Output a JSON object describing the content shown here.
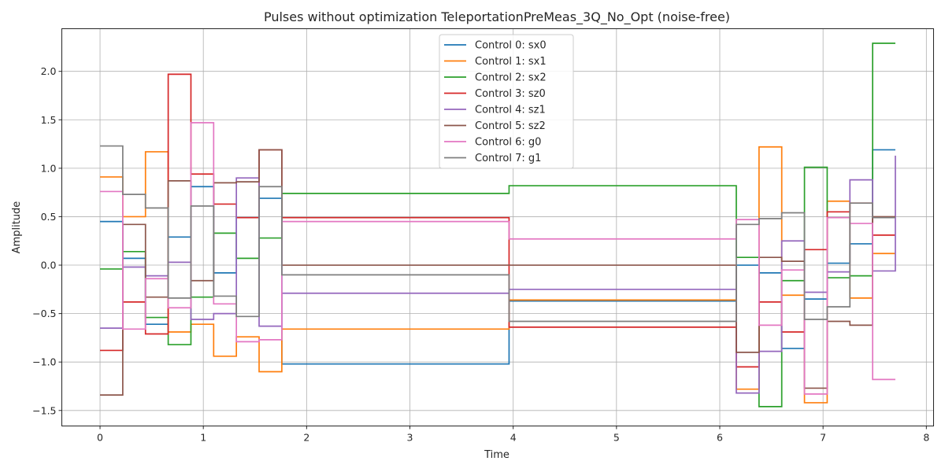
{
  "chart_data": {
    "type": "line",
    "step": "post",
    "title": "Pulses without optimization TeleportationPreMeas_3Q_No_Opt (noise-free)",
    "xlabel": "Time",
    "ylabel": "Amplitude",
    "xlim": [
      -0.37,
      8.07
    ],
    "ylim": [
      -1.66,
      2.44
    ],
    "xticks": [
      0,
      1,
      2,
      3,
      4,
      5,
      6,
      7,
      8
    ],
    "yticks": [
      -1.5,
      -1.0,
      -0.5,
      0.0,
      0.5,
      1.0,
      1.5,
      2.0
    ],
    "ytick_labels": [
      "−1.5",
      "−1.0",
      "−0.5",
      "0.0",
      "0.5",
      "1.0",
      "1.5",
      "2.0"
    ],
    "grid": true,
    "legend_position": "upper-center",
    "x": [
      0,
      0.22,
      0.44,
      0.66,
      0.88,
      1.1,
      1.32,
      1.54,
      1.76,
      3.96,
      6.16,
      6.38,
      6.6,
      6.82,
      7.04,
      7.26,
      7.48,
      7.7
    ],
    "series": [
      {
        "name": "Control 0: sx0",
        "color": "#1f77b4",
        "values": [
          0.45,
          0.07,
          -0.61,
          0.29,
          0.81,
          -0.08,
          0.49,
          0.69,
          -1.02,
          -0.37,
          0.0,
          -0.08,
          -0.86,
          -0.35,
          0.02,
          0.22,
          1.19,
          1.19
        ]
      },
      {
        "name": "Control 1: sx1",
        "color": "#ff7f0e",
        "values": [
          0.91,
          0.5,
          1.17,
          -0.69,
          -0.61,
          -0.94,
          -0.74,
          -1.1,
          -0.66,
          -0.36,
          -1.28,
          1.22,
          -0.31,
          -1.42,
          0.66,
          -0.34,
          0.12,
          0.12
        ]
      },
      {
        "name": "Control 2: sx2",
        "color": "#2ca02c",
        "values": [
          -0.04,
          0.14,
          -0.54,
          -0.82,
          -0.33,
          0.33,
          0.07,
          0.28,
          0.74,
          0.82,
          0.08,
          -1.46,
          -0.16,
          1.01,
          -0.13,
          -0.11,
          2.29,
          2.29
        ]
      },
      {
        "name": "Control 3: sz0",
        "color": "#d62728",
        "values": [
          -0.88,
          -0.38,
          -0.71,
          1.97,
          0.94,
          0.63,
          0.49,
          1.19,
          0.49,
          -0.64,
          -1.05,
          -0.38,
          -0.69,
          0.16,
          0.55,
          0.64,
          0.31,
          0.31
        ]
      },
      {
        "name": "Control 4: sz1",
        "color": "#9467bd",
        "values": [
          -0.65,
          -0.02,
          -0.11,
          0.03,
          -0.56,
          -0.5,
          0.9,
          -0.63,
          -0.29,
          -0.25,
          -1.32,
          -0.89,
          0.25,
          -0.28,
          -0.07,
          0.88,
          -0.06,
          1.13
        ]
      },
      {
        "name": "Control 5: sz2",
        "color": "#8c564b",
        "values": [
          -1.34,
          0.42,
          -0.33,
          0.87,
          -0.16,
          0.85,
          0.86,
          1.19,
          0.0,
          0.0,
          -0.9,
          0.08,
          0.04,
          -1.27,
          -0.58,
          -0.62,
          0.5,
          0.5
        ]
      },
      {
        "name": "Control 6: g0",
        "color": "#e377c2",
        "values": [
          0.76,
          -0.66,
          -0.14,
          -0.44,
          1.47,
          -0.4,
          -0.79,
          -0.77,
          0.45,
          0.27,
          0.47,
          -0.62,
          -0.05,
          -1.33,
          0.49,
          0.43,
          -1.18,
          -1.18
        ]
      },
      {
        "name": "Control 7: g1",
        "color": "#7f7f7f",
        "values": [
          1.23,
          0.73,
          0.59,
          -0.34,
          0.61,
          -0.32,
          -0.53,
          0.81,
          -0.1,
          -0.58,
          0.42,
          0.48,
          0.54,
          -0.56,
          -0.43,
          0.64,
          0.49,
          0.49
        ]
      }
    ]
  }
}
